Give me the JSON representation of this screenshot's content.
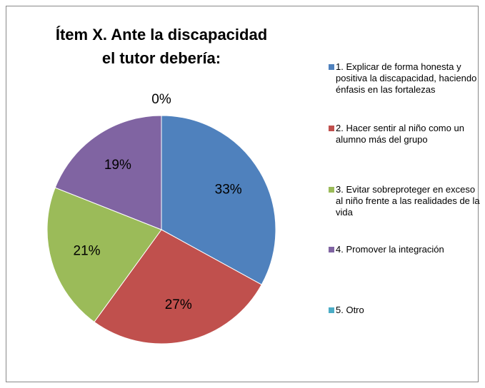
{
  "chart_data": {
    "type": "pie",
    "title": "Ítem X. Ante la discapacidad el tutor debería:",
    "categories": [
      "1. Explicar de forma honesta y positiva la discapacidad, haciendo énfasis en las fortalezas",
      "2. Hacer sentir al niño como un alumno más del grupo",
      "3. Evitar sobreproteger en exceso al niño frente a las realidades de la vida",
      "4. Promover la integración",
      "5. Otro"
    ],
    "values": [
      33,
      27,
      21,
      19,
      0
    ],
    "value_labels": [
      "33%",
      "27%",
      "21%",
      "19%",
      "0%"
    ],
    "colors": [
      "#4f81bd",
      "#c0504d",
      "#9bbb59",
      "#8064a2",
      "#4bacc6"
    ],
    "legend": "right"
  }
}
